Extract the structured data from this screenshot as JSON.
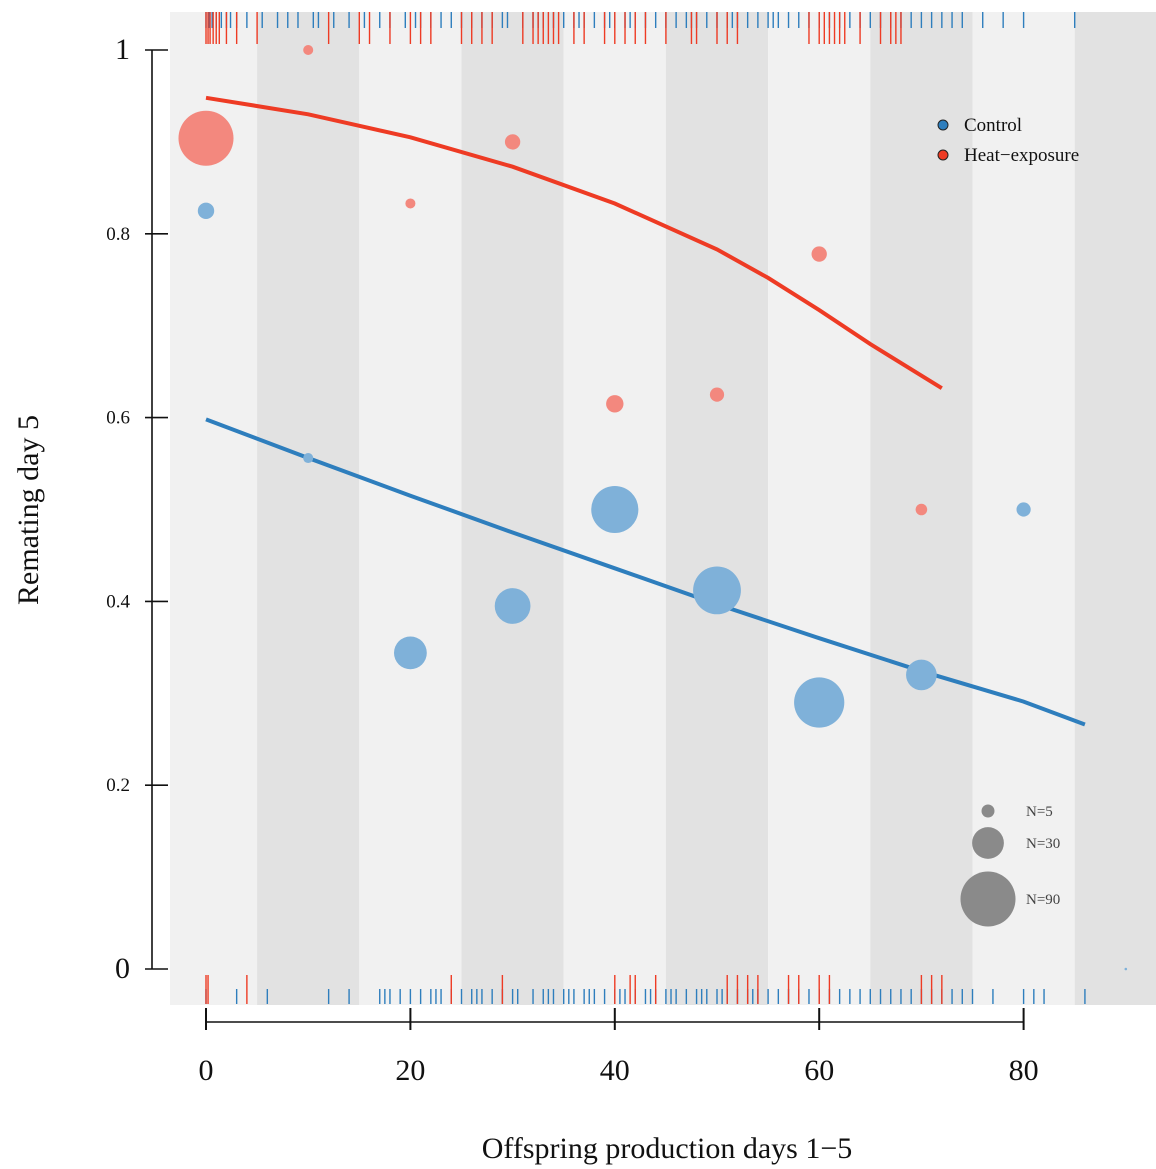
{
  "chart_data": {
    "type": "scatter",
    "xlabel": "Offspring production days 1−5",
    "ylabel": "Remating day 5",
    "xlim": [
      -7,
      93
    ],
    "ylim": [
      -0.05,
      1.04
    ],
    "x_ticks": [
      0,
      20,
      40,
      60,
      80
    ],
    "x_tick_labels": [
      "0",
      "20",
      "40",
      "60",
      "80"
    ],
    "y_ticks": [
      0,
      0.2,
      0.4,
      0.6,
      0.8,
      1
    ],
    "y_tick_labels": [
      "0",
      "0.2",
      "0.4",
      "0.6",
      "0.8",
      "1"
    ],
    "background_bands": {
      "width": 10,
      "start": -5,
      "colors": [
        "#f1f1f1",
        "#e2e2e2"
      ]
    },
    "colors": {
      "control": "#2e7ebd",
      "control_points": "#7fb1d9",
      "heat": "#ee3b24",
      "heat_points": "#f3887e",
      "size_key": "#8a8a8a"
    },
    "legend": {
      "placement": "top-right",
      "entries": [
        {
          "label": "Control",
          "color": "#2e7ebd"
        },
        {
          "label": "Heat−exposure",
          "color": "#ee3b24"
        }
      ]
    },
    "size_legend": {
      "placement": "bottom-right",
      "entries": [
        {
          "label": "N=5",
          "n": 5
        },
        {
          "label": "N=30",
          "n": 30
        },
        {
          "label": "N=90",
          "n": 90
        }
      ]
    },
    "series": [
      {
        "name": "Control",
        "points": [
          {
            "x": 0,
            "y": 0.825,
            "n": 8
          },
          {
            "x": 10,
            "y": 0.556,
            "n": 3
          },
          {
            "x": 20,
            "y": 0.344,
            "n": 32
          },
          {
            "x": 30,
            "y": 0.395,
            "n": 38
          },
          {
            "x": 40,
            "y": 0.5,
            "n": 66
          },
          {
            "x": 50,
            "y": 0.412,
            "n": 68
          },
          {
            "x": 60,
            "y": 0.29,
            "n": 75
          },
          {
            "x": 70,
            "y": 0.32,
            "n": 28
          },
          {
            "x": 80,
            "y": 0.5,
            "n": 6
          },
          {
            "x": 90,
            "y": 0.0,
            "n": 0.2
          }
        ],
        "fit": {
          "x": [
            0,
            10,
            20,
            30,
            40,
            50,
            60,
            70,
            80,
            86
          ],
          "y": [
            0.598,
            0.556,
            0.515,
            0.475,
            0.436,
            0.397,
            0.36,
            0.324,
            0.291,
            0.266
          ]
        },
        "rug_top_x": [
          0,
          0.3,
          0.6,
          1,
          1.5,
          2,
          2.4,
          3,
          4,
          5.5,
          7,
          8,
          9,
          10.5,
          11,
          12.5,
          14,
          15.5,
          17,
          18,
          19.5,
          20.5,
          21,
          22,
          23,
          24,
          25,
          26,
          27,
          28,
          29,
          29.5,
          31,
          32,
          32.5,
          33,
          34,
          35,
          36,
          36.5,
          37,
          38,
          39,
          39.5,
          40,
          41,
          41.5,
          42,
          43,
          44,
          45,
          46,
          47,
          47.5,
          48,
          49,
          50,
          51,
          51.5,
          52,
          53,
          54,
          55,
          55.5,
          56,
          57,
          58,
          59,
          60,
          61,
          62,
          63,
          64,
          65,
          66,
          67,
          68,
          69,
          70,
          71,
          72,
          73,
          74,
          76,
          78,
          80,
          85
        ],
        "rug_bottom_x": [
          0,
          3,
          6,
          12,
          14,
          17,
          17.5,
          18,
          19,
          20,
          21,
          22,
          22.5,
          23,
          24,
          25,
          26,
          26.5,
          27,
          28,
          29,
          30,
          30.5,
          32,
          33,
          33.5,
          34,
          35,
          35.5,
          36,
          37,
          37.5,
          38,
          39,
          40,
          40.5,
          41,
          42,
          43,
          43.5,
          44,
          45,
          45.5,
          46,
          47,
          48,
          48.5,
          49,
          50,
          50.5,
          51,
          52,
          53,
          53.5,
          54,
          55,
          56,
          57,
          58,
          59,
          60,
          61,
          62,
          63,
          64,
          65,
          66,
          67,
          68,
          69,
          70,
          71,
          72,
          73,
          74,
          75,
          77,
          80,
          81,
          82,
          86
        ]
      },
      {
        "name": "Heat−exposure",
        "points": [
          {
            "x": 0,
            "y": 0.904,
            "n": 90
          },
          {
            "x": 10,
            "y": 1.0,
            "n": 3
          },
          {
            "x": 20,
            "y": 0.833,
            "n": 3
          },
          {
            "x": 30,
            "y": 0.9,
            "n": 7
          },
          {
            "x": 40,
            "y": 0.615,
            "n": 9
          },
          {
            "x": 50,
            "y": 0.625,
            "n": 6
          },
          {
            "x": 60,
            "y": 0.778,
            "n": 7
          },
          {
            "x": 70,
            "y": 0.5,
            "n": 4
          }
        ],
        "fit": {
          "x": [
            0,
            10,
            20,
            30,
            40,
            50,
            55,
            60,
            65,
            72
          ],
          "y": [
            0.948,
            0.93,
            0.905,
            0.873,
            0.833,
            0.783,
            0.752,
            0.717,
            0.68,
            0.632
          ]
        },
        "rug_top_x": [
          0,
          0.2,
          0.4,
          0.7,
          1,
          1.3,
          2,
          3,
          5,
          12,
          15,
          16,
          18,
          20,
          21,
          22,
          25,
          26,
          27,
          28,
          31,
          32,
          32.5,
          33,
          33.5,
          34,
          34.5,
          36,
          37,
          39,
          40,
          41,
          42,
          43,
          45,
          47.5,
          48,
          50,
          51,
          52,
          59,
          60,
          60.5,
          61,
          61.5,
          62,
          62.5,
          64,
          66,
          67,
          67.5,
          68
        ],
        "rug_bottom_x": [
          0,
          0.2,
          4,
          24,
          29,
          40,
          41.5,
          42,
          44,
          51,
          52,
          53,
          54,
          57,
          58,
          60,
          61,
          70,
          71,
          72
        ]
      }
    ]
  }
}
